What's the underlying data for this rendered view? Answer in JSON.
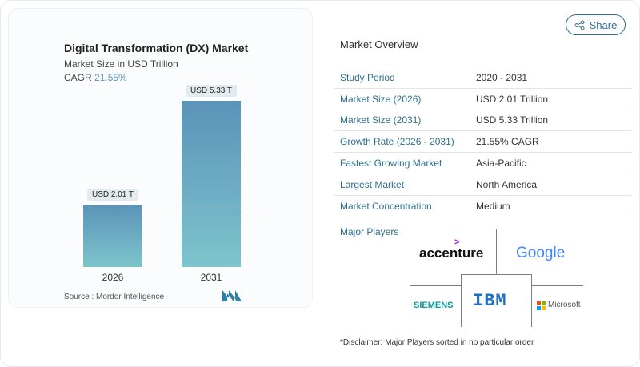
{
  "share_label": "Share",
  "chart": {
    "title": "Digital Transformation (DX) Market",
    "subtitle": "Market Size in USD Trillion",
    "cagr_label": "CAGR",
    "cagr_value": "21.55%",
    "source": "Source :  Mordor Intelligence"
  },
  "chart_data": {
    "type": "bar",
    "title": "Digital Transformation (DX) Market",
    "ylabel": "Market Size in USD Trillion",
    "categories": [
      "2026",
      "2031"
    ],
    "values": [
      2.01,
      5.33
    ],
    "data_labels": [
      "USD 2.01 T",
      "USD 5.33 T"
    ],
    "colors": [
      "#5b93b9",
      "#7ec4cc"
    ]
  },
  "overview": {
    "heading": "Market Overview",
    "rows": [
      {
        "label": "Study Period",
        "value": "2020 - 2031"
      },
      {
        "label": "Market Size (2026)",
        "value": "USD 2.01 Trillion"
      },
      {
        "label": "Market Size (2031)",
        "value": "USD 5.33 Trillion"
      },
      {
        "label": "Growth Rate (2026 - 2031)",
        "value": "21.55% CAGR"
      },
      {
        "label": "Fastest Growing Market",
        "value": "Asia-Pacific"
      },
      {
        "label": "Largest Market",
        "value": "North America"
      },
      {
        "label": "Market Concentration",
        "value": "Medium"
      }
    ]
  },
  "players": {
    "heading": "Major Players",
    "logos": [
      "accenture",
      "Google",
      "SIEMENS",
      "IBM",
      "Microsoft"
    ]
  },
  "disclaimer": "*Disclaimer: Major Players sorted in no particular order"
}
